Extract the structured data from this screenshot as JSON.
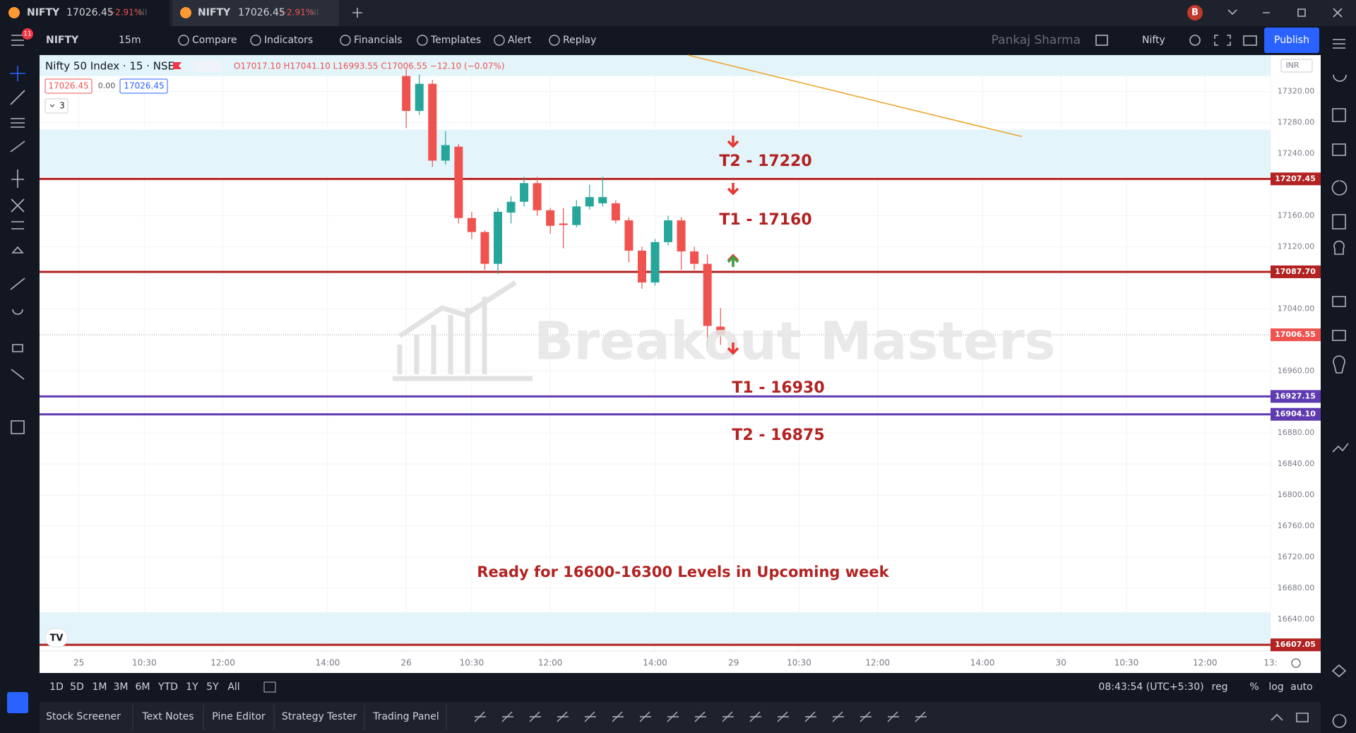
{
  "tabs": [
    {
      "symbol": "NIFTY",
      "price": "17026.45",
      "change": "−2.91%",
      "suffix": "NI"
    },
    {
      "symbol": "NIFTY",
      "price": "17026.45",
      "change": "−2.91%",
      "suffix": "NI"
    }
  ],
  "avatar": "B",
  "badge": "11",
  "toolbar": {
    "symbol": "NIFTY",
    "interval": "15m",
    "buttons": [
      "Compare",
      "Indicators",
      "Financials",
      "Templates",
      "Alert",
      "Replay"
    ],
    "user": "Pankaj Sharma",
    "layout": "Nifty",
    "publish": "Publish"
  },
  "legend": {
    "title": "Nifty 50 Index · 15 · NSE",
    "ohlc": "O17017.10 H17041.10 L16993.55 C17006.55 −12.10 (−0.07%)",
    "bid": "17026.45",
    "spread": "0.00",
    "ask": "17026.45",
    "count": "3"
  },
  "currency": "INR",
  "watermark": "Breakout Masters",
  "chart_data": {
    "type": "candlestick",
    "up_color": "#26a69a",
    "down_color": "#ef5350",
    "candles": [
      {
        "open": 17340,
        "high": 17349,
        "low": 17273,
        "close": 17295
      },
      {
        "open": 17295,
        "high": 17342,
        "low": 17290,
        "close": 17330
      },
      {
        "open": 17330,
        "high": 17335,
        "low": 17223,
        "close": 17231
      },
      {
        "open": 17231,
        "high": 17269,
        "low": 17226,
        "close": 17251
      },
      {
        "open": 17249,
        "high": 17252,
        "low": 17150,
        "close": 17157
      },
      {
        "open": 17157,
        "high": 17165,
        "low": 17130,
        "close": 17139
      },
      {
        "open": 17139,
        "high": 17141,
        "low": 17090,
        "close": 17098
      },
      {
        "open": 17098,
        "high": 17170,
        "low": 17085,
        "close": 17165
      },
      {
        "open": 17164,
        "high": 17185,
        "low": 17150,
        "close": 17178
      },
      {
        "open": 17178,
        "high": 17210,
        "low": 17172,
        "close": 17202
      },
      {
        "open": 17202,
        "high": 17210,
        "low": 17160,
        "close": 17167
      },
      {
        "open": 17167,
        "high": 17170,
        "low": 17137,
        "close": 17147
      },
      {
        "open": 17150,
        "high": 17170,
        "low": 17118,
        "close": 17148
      },
      {
        "open": 17148,
        "high": 17180,
        "low": 17145,
        "close": 17172
      },
      {
        "open": 17172,
        "high": 17200,
        "low": 17168,
        "close": 17184
      },
      {
        "open": 17176,
        "high": 17210,
        "low": 17172,
        "close": 17184
      },
      {
        "open": 17176,
        "high": 17180,
        "low": 17150,
        "close": 17154
      },
      {
        "open": 17154,
        "high": 17158,
        "low": 17100,
        "close": 17115
      },
      {
        "open": 17115,
        "high": 17120,
        "low": 17066,
        "close": 17074
      },
      {
        "open": 17074,
        "high": 17130,
        "low": 17070,
        "close": 17126
      },
      {
        "open": 17126,
        "high": 17160,
        "low": 17122,
        "close": 17154
      },
      {
        "open": 17154,
        "high": 17158,
        "low": 17090,
        "close": 17114
      },
      {
        "open": 17114,
        "high": 17120,
        "low": 17090,
        "close": 17098
      },
      {
        "open": 17098,
        "high": 17110,
        "low": 16990,
        "close": 17018
      },
      {
        "open": 17017.1,
        "high": 17041.1,
        "low": 16993.55,
        "close": 17006.55
      }
    ],
    "xlim": [
      -28,
      66
    ],
    "xticks": [
      {
        "value": -25,
        "label": "25"
      },
      {
        "value": -20,
        "label": "10:30"
      },
      {
        "value": -14,
        "label": "12:00"
      },
      {
        "value": -6,
        "label": "14:00"
      },
      {
        "value": 0,
        "label": "26"
      },
      {
        "value": 5,
        "label": "10:30"
      },
      {
        "value": 11,
        "label": "12:00"
      },
      {
        "value": 19,
        "label": "14:00"
      },
      {
        "value": 25,
        "label": "29"
      },
      {
        "value": 30,
        "label": "10:30"
      },
      {
        "value": 36,
        "label": "12:00"
      },
      {
        "value": 44,
        "label": "14:00"
      },
      {
        "value": 50,
        "label": "30"
      },
      {
        "value": 55,
        "label": "10:30"
      },
      {
        "value": 61,
        "label": "12:00"
      },
      {
        "value": 66,
        "label": "13:"
      }
    ],
    "ylim": [
      16599,
      17367
    ],
    "yticks": [
      {
        "value": 17320,
        "label": "17320.00"
      },
      {
        "value": 17280,
        "label": "17280.00"
      },
      {
        "value": 17240,
        "label": "17240.00"
      },
      {
        "value": 17160,
        "label": "17160.00"
      },
      {
        "value": 17120,
        "label": "17120.00"
      },
      {
        "value": 17040,
        "label": "17040.00"
      },
      {
        "value": 16960,
        "label": "16960.00"
      },
      {
        "value": 16880,
        "label": "16880.00"
      },
      {
        "value": 16840,
        "label": "16840.00"
      },
      {
        "value": 16800,
        "label": "16800.00"
      },
      {
        "value": 16760,
        "label": "16760.00"
      },
      {
        "value": 16720,
        "label": "16720.00"
      },
      {
        "value": 16680,
        "label": "16680.00"
      },
      {
        "value": 16640,
        "label": "16640.00"
      }
    ],
    "grid": true,
    "zone_color": "#e3f5fb",
    "zones": [
      {
        "from": 17340,
        "to": 17367
      },
      {
        "from": 17210,
        "to": 17271
      },
      {
        "from": 16608,
        "to": 16649
      }
    ],
    "levels": [
      {
        "value": 17207.45,
        "label": "17207.45",
        "color": "#b22222"
      },
      {
        "value": 17087.7,
        "label": "17087.70",
        "color": "#b22222"
      },
      {
        "value": 16927.15,
        "label": "16927.15",
        "color": "#5e3bb0"
      },
      {
        "value": 16904.1,
        "label": "16904.10",
        "color": "#5e3bb0"
      },
      {
        "value": 16607.05,
        "label": "16607.05",
        "color": "#b22222"
      }
    ],
    "last_price": {
      "value": 17006.55,
      "label": "17006.55",
      "color": "#ef5350"
    },
    "trendline": {
      "color": "#f0a630",
      "points": [
        {
          "x": 21.5,
          "y": 17367
        },
        {
          "x": 47,
          "y": 17262
        }
      ]
    },
    "annotations": [
      "T2 - 17220",
      "T1 - 17160",
      "T1 - 16930",
      "T2 - 16875",
      "Ready for 16600-16300 Levels in Upcoming week"
    ]
  },
  "ranges": [
    "1D",
    "5D",
    "1M",
    "3M",
    "6M",
    "YTD",
    "1Y",
    "5Y",
    "All"
  ],
  "status": {
    "time": "08:43:54 (UTC+5:30)",
    "options": [
      "reg",
      "%",
      "log",
      "auto"
    ]
  },
  "panels": [
    "Stock Screener",
    "Text Notes",
    "Pine Editor",
    "Strategy Tester",
    "Trading Panel"
  ]
}
